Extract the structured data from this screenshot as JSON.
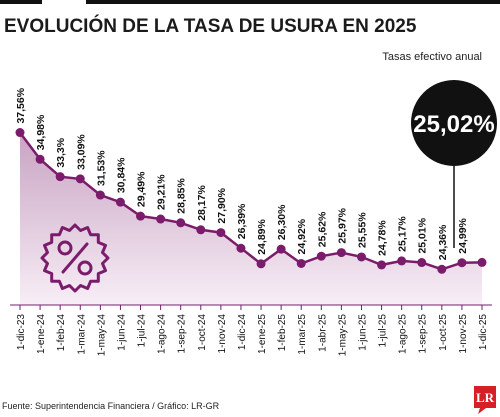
{
  "chart_data": {
    "type": "area",
    "title": "EVOLUCIÓN DE LA TASA DE USURA EN 2025",
    "subtitle": "Tasas efectivo anual",
    "highlight": "25,02%",
    "source": "Fuente: Superintendencia Financiera / Gráfico: LR-GR",
    "categories": [
      "1-dic-23",
      "1-ene-24",
      "1-feb-24",
      "1-mar-24",
      "1-may-24",
      "1-jun-24",
      "1-jul-24",
      "1-ago-24",
      "1-sep-24",
      "1-oct-24",
      "1-nov-24",
      "1-dic-24",
      "1-ene-25",
      "1-feb-25",
      "1-mar-25",
      "1-abr-25",
      "1-may-25",
      "1-jun-25",
      "1-jul-25",
      "1-ago-25",
      "1-sep-25",
      "1-oct-25",
      "1-nov-25",
      "1-dic-25"
    ],
    "values": [
      37.56,
      34.98,
      33.3,
      33.09,
      31.53,
      30.84,
      29.49,
      29.21,
      28.85,
      28.17,
      27.9,
      26.39,
      24.89,
      26.3,
      24.92,
      25.62,
      25.97,
      25.55,
      24.78,
      25.17,
      25.01,
      24.36,
      24.99,
      25.02
    ],
    "labels": [
      "37,56%",
      "34,98%",
      "33,3%",
      "33,09%",
      "31,53%",
      "30,84%",
      "29,49%",
      "29,21%",
      "28,85%",
      "28,17%",
      "27,90%",
      "26,39%",
      "24,89%",
      "26,30%",
      "24,92%",
      "25,62%",
      "25,97%",
      "25,55%",
      "24,78%",
      "25,17%",
      "25,01%",
      "24,36%",
      "24,99%",
      ""
    ],
    "colors": {
      "line": "#7a1c6b",
      "fill_top": "#c9a3c3",
      "fill_bottom": "#f7eef6",
      "icon": "#7a1c6b",
      "badge": "#111111"
    },
    "icons": [
      "percent-tag-icon"
    ],
    "logo": "LR"
  }
}
